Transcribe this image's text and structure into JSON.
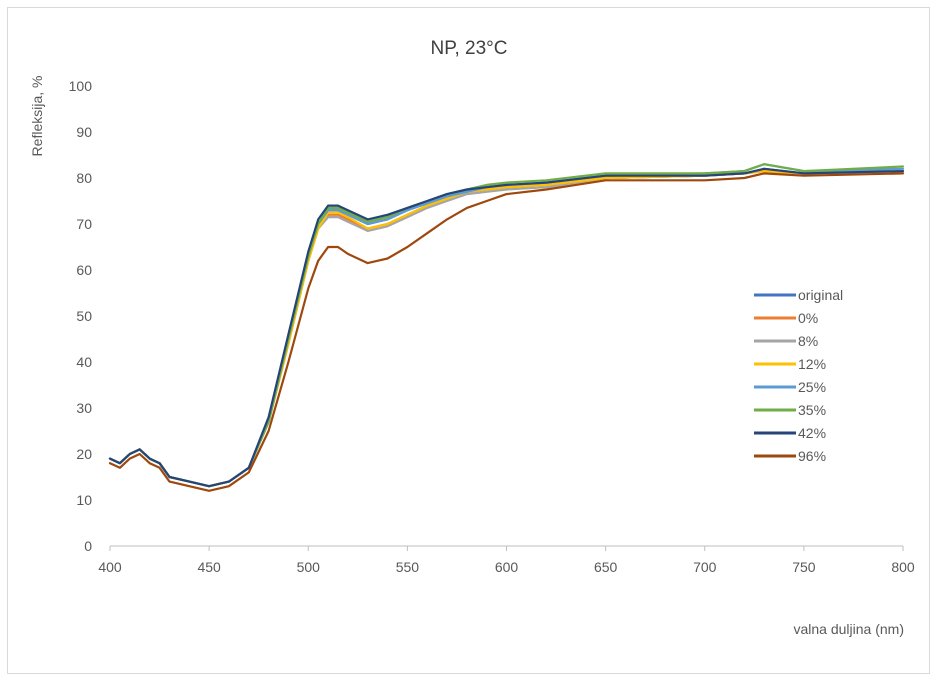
{
  "chart_data": {
    "type": "line",
    "title": "NP, 23°C",
    "xlabel": "valna duljina (nm)",
    "ylabel": "Refleksija, %",
    "xlim": [
      400,
      800
    ],
    "ylim": [
      0,
      100
    ],
    "x_ticks": [
      400,
      450,
      500,
      550,
      600,
      650,
      700,
      750,
      800
    ],
    "y_ticks": [
      0,
      10,
      20,
      30,
      40,
      50,
      60,
      70,
      80,
      90,
      100
    ],
    "grid": false,
    "legend_position": "right",
    "x": [
      400,
      405,
      410,
      415,
      420,
      425,
      430,
      440,
      450,
      460,
      470,
      480,
      490,
      500,
      505,
      510,
      515,
      520,
      530,
      540,
      550,
      560,
      570,
      580,
      590,
      600,
      620,
      650,
      700,
      720,
      730,
      750,
      800
    ],
    "series": [
      {
        "name": "original",
        "color": "#4472c4",
        "values": [
          19,
          18,
          20,
          21,
          19,
          18,
          15,
          14,
          13,
          14,
          17,
          27,
          45,
          63,
          70,
          73,
          73,
          72,
          70,
          71,
          73,
          74.5,
          76,
          77,
          77.5,
          78,
          78.5,
          80,
          80.5,
          81,
          82,
          81,
          81.5
        ]
      },
      {
        "name": "0%",
        "color": "#ed7d31",
        "values": [
          19,
          18,
          20,
          21,
          19,
          18,
          15,
          14,
          13,
          14,
          17,
          27,
          44,
          62,
          69,
          72,
          72,
          71,
          69,
          70,
          72,
          74,
          75.5,
          77,
          77.5,
          78,
          78.5,
          80,
          80.5,
          81,
          81.5,
          81,
          81.5
        ]
      },
      {
        "name": "8%",
        "color": "#a5a5a5",
        "values": [
          19,
          18,
          20,
          21,
          19,
          18,
          15,
          14,
          13,
          14,
          17,
          27,
          44,
          62,
          69,
          71.5,
          71.5,
          70.5,
          68.5,
          69.5,
          71.5,
          73.5,
          75,
          76.5,
          77,
          77.5,
          78,
          80,
          80.5,
          81,
          81.5,
          81,
          81.5
        ]
      },
      {
        "name": "12%",
        "color": "#ffc000",
        "values": [
          19,
          18,
          20,
          21,
          19,
          18,
          15,
          14,
          13,
          14,
          17,
          27,
          44,
          62,
          69,
          72.5,
          72.5,
          71.5,
          69,
          70,
          72,
          74,
          75.5,
          77,
          77.5,
          78,
          78.5,
          80,
          80.5,
          81,
          81.5,
          81,
          81.5
        ]
      },
      {
        "name": "25%",
        "color": "#5b9bd5",
        "values": [
          19,
          18,
          20,
          21,
          19,
          18,
          15,
          14,
          13,
          14,
          17,
          27,
          45,
          63,
          70,
          73,
          73,
          72,
          70,
          71,
          73,
          74.5,
          76,
          77,
          78,
          78.5,
          79,
          80.5,
          81,
          81.5,
          83,
          81.5,
          82
        ]
      },
      {
        "name": "35%",
        "color": "#70ad47",
        "values": [
          19,
          18,
          20,
          21,
          19,
          18,
          15,
          14,
          13,
          14,
          17,
          27,
          45,
          63,
          70,
          73.5,
          73.5,
          72.5,
          70.5,
          71.5,
          73.5,
          75,
          76.5,
          77.5,
          78.5,
          79,
          79.5,
          81,
          81,
          81.5,
          83,
          81.5,
          82.5
        ]
      },
      {
        "name": "42%",
        "color": "#264478",
        "values": [
          19,
          18,
          20,
          21,
          19,
          18,
          15,
          14,
          13,
          14,
          17,
          28,
          46,
          64,
          71,
          74,
          74,
          73,
          71,
          72,
          73.5,
          75,
          76.5,
          77.5,
          78,
          78.5,
          79,
          80.5,
          80.5,
          81,
          82,
          81,
          81.5
        ]
      },
      {
        "name": "96%",
        "color": "#9e480e",
        "values": [
          18,
          17,
          19,
          20,
          18,
          17,
          14,
          13,
          12,
          13,
          16,
          25,
          40,
          56,
          62,
          65,
          65,
          63.5,
          61.5,
          62.5,
          65,
          68,
          71,
          73.5,
          75,
          76.5,
          77.5,
          79.5,
          79.5,
          80,
          81,
          80.5,
          81
        ]
      }
    ]
  }
}
